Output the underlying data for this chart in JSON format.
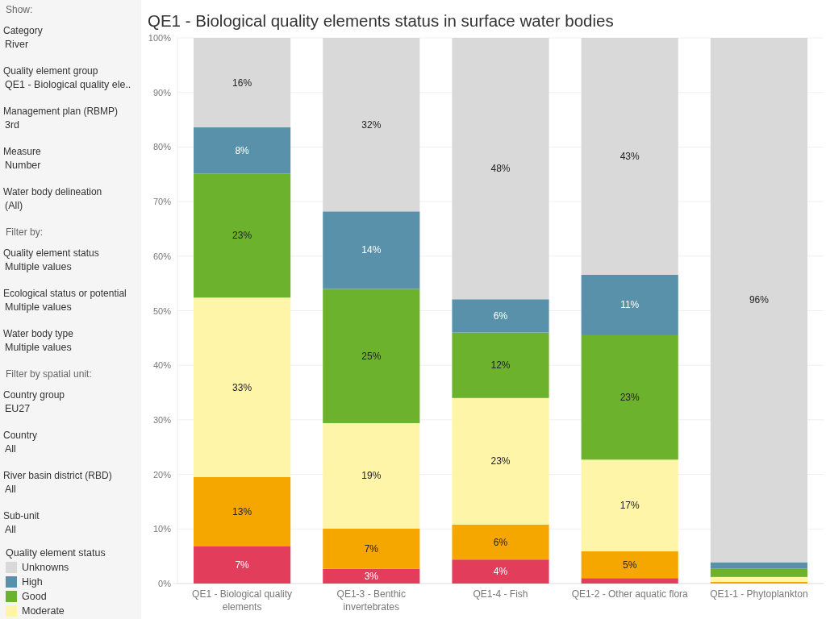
{
  "chart_data": [
    {
      "type": "other",
      "title": "Show:",
      "annotations": [
        "Category",
        "River",
        "Quality element group",
        "QE1 - Biological quality ele..",
        "Management plan (RBMP)",
        "3rd",
        "Measure",
        "Number",
        "Water body delineation",
        "(All)"
      ]
    },
    {
      "type": "other",
      "title": "Filter by:",
      "annotations": [
        "Quality element status",
        "Multiple values",
        "Ecological status or potential",
        "Multiple values",
        "Water body type",
        "Multiple values"
      ]
    },
    {
      "type": "other",
      "title": "Filter by spatial unit:",
      "annotations": [
        "Country group",
        "EU27",
        "Country",
        "All",
        "River basin district (RBD)",
        "All",
        "Sub-unit",
        "All"
      ]
    },
    {
      "type": "bar",
      "title": "QE1 - Biological quality elements status in surface water bodies",
      "categories": [
        "QE1 - Biological quality elements",
        "QE1-3 - Benthic invertebrates",
        "QE1-4 - Fish",
        "QE1-2 - Other aquatic flora",
        "QE1-1 - Phytoplankton"
      ],
      "stacked": true,
      "series": [
        {
          "color": "#e33d5c",
          "values": [
            6.8,
            2.7,
            4.4,
            1.0,
            null
          ],
          "value_labels": [
            "7%",
            "3%",
            "4%",
            null,
            null
          ]
        },
        {
          "color": "#f5a700",
          "values": [
            12.7,
            7.4,
            6.4,
            4.9,
            0.3
          ],
          "value_labels": [
            "13%",
            "7%",
            "6%",
            "5%",
            null
          ]
        },
        {
          "name": "Moderate",
          "color": "#fff5a8",
          "values": [
            32.9,
            19.3,
            23.2,
            16.8,
            0.9
          ],
          "value_labels": [
            "33%",
            "19%",
            "23%",
            "17%",
            null
          ]
        },
        {
          "name": "Good",
          "color": "#6db22c",
          "values": [
            22.7,
            24.6,
            12.0,
            22.8,
            1.5
          ],
          "value_labels": [
            "23%",
            "25%",
            "12%",
            "23%",
            null
          ]
        },
        {
          "name": "High",
          "color": "#5891a9",
          "values": [
            8.5,
            14.2,
            6.1,
            11.1,
            1.2
          ],
          "value_labels": [
            "8%",
            "14%",
            "6%",
            "11%",
            null
          ]
        },
        {
          "name": "Unknowns",
          "color": "#d9d9d9",
          "values": [
            16.4,
            31.8,
            47.9,
            43.4,
            96.1
          ],
          "value_labels": [
            "16%",
            "32%",
            "48%",
            "43%",
            "96%"
          ]
        }
      ],
      "ylim": [
        0,
        100
      ],
      "yticks": [
        {
          "value": 0,
          "label": "0%"
        },
        {
          "value": 10,
          "label": "10%"
        },
        {
          "value": 20,
          "label": "20%"
        },
        {
          "value": 30,
          "label": "30%"
        },
        {
          "value": 40,
          "label": "40%"
        },
        {
          "value": 50,
          "label": "50%"
        },
        {
          "value": 60,
          "label": "60%"
        },
        {
          "value": 70,
          "label": "70%"
        },
        {
          "value": 80,
          "label": "80%"
        },
        {
          "value": 90,
          "label": "90%"
        },
        {
          "value": 100,
          "label": "100%"
        }
      ],
      "grid": "y",
      "legend": "bottom left",
      "legend_title": "Quality element status"
    }
  ]
}
